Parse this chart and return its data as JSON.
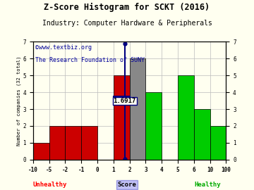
{
  "title": "Z-Score Histogram for SCKT (2016)",
  "subtitle": "Industry: Computer Hardware & Peripherals",
  "watermark1": "©www.textbiz.org",
  "watermark2": "The Research Foundation of SUNY",
  "ylabel": "Number of companies (32 total)",
  "xlabel_center": "Score",
  "xlabel_left": "Unhealthy",
  "xlabel_right": "Healthy",
  "zscore_value": 1.6917,
  "zscore_label": "1.6917",
  "bin_labels": [
    "-10",
    "-5",
    "-2",
    "-1",
    "0",
    "1",
    "2",
    "3",
    "4",
    "5",
    "6",
    "10",
    "100"
  ],
  "counts": [
    1,
    2,
    2,
    2,
    0,
    5,
    6,
    4,
    0,
    5,
    3,
    2
  ],
  "colors": [
    "#cc0000",
    "#cc0000",
    "#cc0000",
    "#cc0000",
    "#cc0000",
    "#cc0000",
    "#888888",
    "#00cc00",
    "#00cc00",
    "#00cc00",
    "#00cc00",
    "#00cc00"
  ],
  "ylim": [
    0,
    7
  ],
  "yticks": [
    0,
    1,
    2,
    3,
    4,
    5,
    6,
    7
  ],
  "background_color": "#fffff0",
  "grid_color": "#bbbbbb",
  "title_fontsize": 8.5,
  "subtitle_fontsize": 7,
  "watermark_fontsize": 6,
  "tick_fontsize": 5.5
}
